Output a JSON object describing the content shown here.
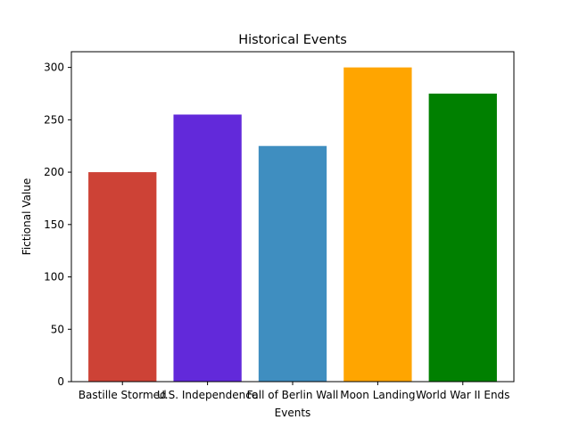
{
  "chart_data": {
    "type": "bar",
    "title": "Historical Events",
    "xlabel": "Events",
    "ylabel": "Fictional Value",
    "categories": [
      "Bastille Stormed",
      "U.S. Independence",
      "Fall of Berlin Wall",
      "Moon Landing",
      "World War II Ends"
    ],
    "values": [
      200,
      255,
      225,
      300,
      275
    ],
    "colors": [
      "#cd4236",
      "#6229da",
      "#3f8ec0",
      "#ffa500",
      "#008000"
    ],
    "ylim": [
      0,
      315
    ],
    "yticks": [
      0,
      50,
      100,
      150,
      200,
      250,
      300
    ],
    "grid": false,
    "legend": false
  }
}
